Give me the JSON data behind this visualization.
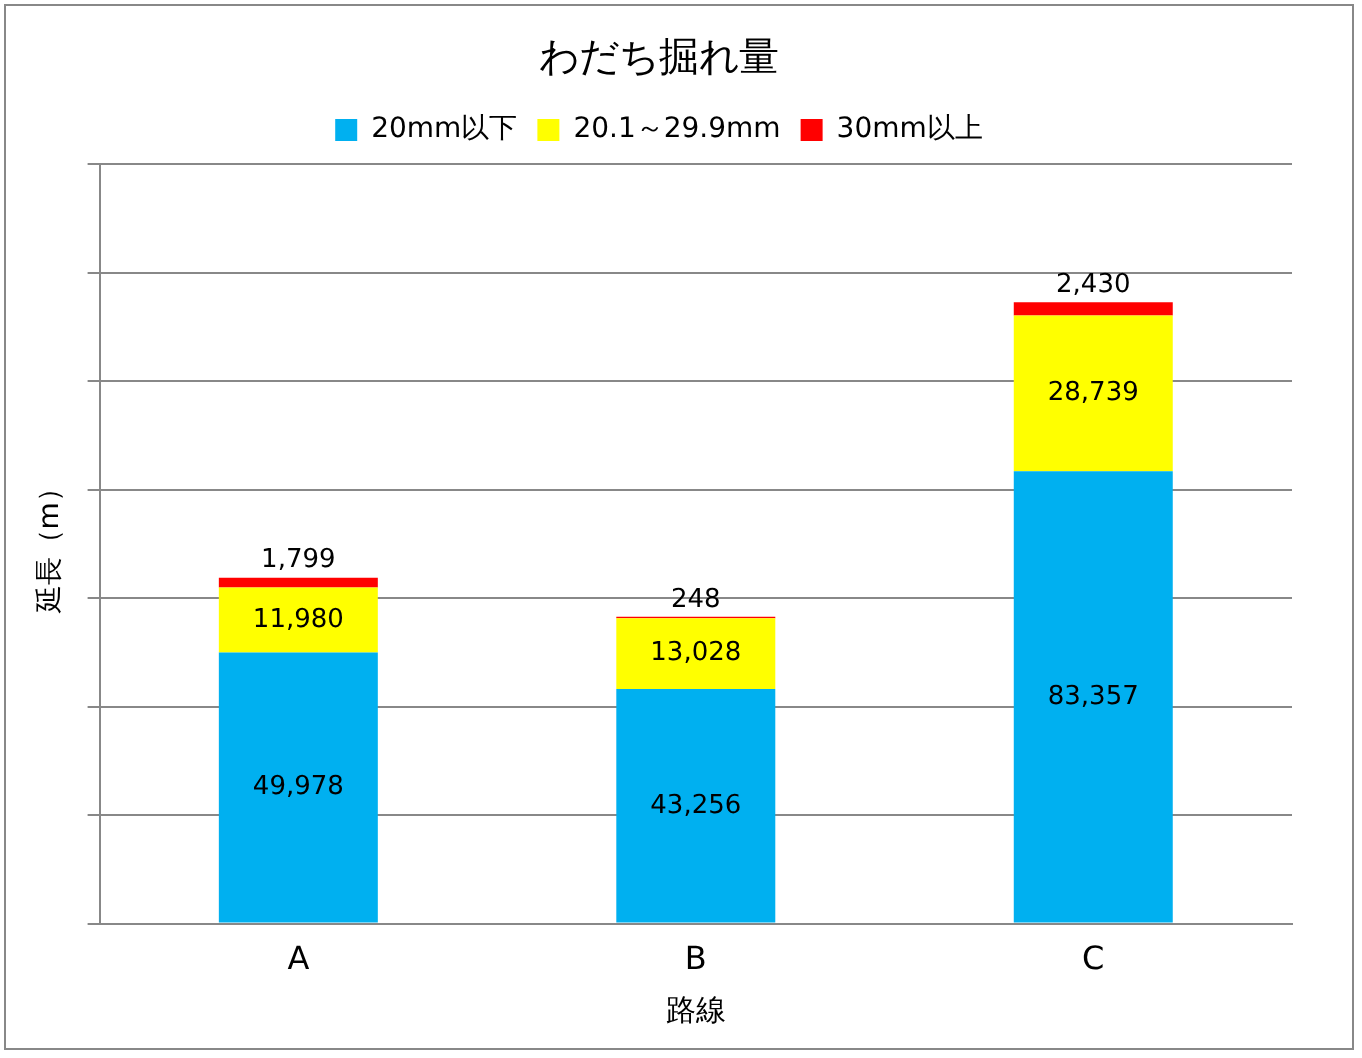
{
  "chart_data": {
    "type": "bar",
    "stacked": true,
    "title": "わだち掘れ量",
    "xlabel": "路線",
    "ylabel": "延長（m）",
    "categories": [
      "A",
      "B",
      "C"
    ],
    "series": [
      {
        "name": "20mm以下",
        "color": "#00b0f0",
        "values": [
          49978,
          43256,
          83357
        ],
        "value_labels": [
          "49,978",
          "43,256",
          "83,357"
        ]
      },
      {
        "name": "20.1～29.9mm",
        "color": "#ffff00",
        "values": [
          11980,
          13028,
          28739
        ],
        "value_labels": [
          "11,980",
          "13,028",
          "28,739"
        ]
      },
      {
        "name": "30mm以上",
        "color": "#ff0000",
        "values": [
          1799,
          248,
          2430
        ],
        "value_labels": [
          "1,799",
          "248",
          "2,430"
        ]
      }
    ],
    "ylim": [
      0,
      140000
    ],
    "yticks": [
      {
        "value": 0,
        "label": null
      },
      {
        "value": 20000,
        "label": null
      },
      {
        "value": 40000,
        "label": null
      },
      {
        "value": 60000,
        "label": null
      },
      {
        "value": 80000,
        "label": null
      },
      {
        "value": 100000,
        "label": null
      },
      {
        "value": 120000,
        "label": null
      },
      {
        "value": 140000,
        "label": null
      }
    ],
    "grid": "y",
    "legend": "top"
  }
}
